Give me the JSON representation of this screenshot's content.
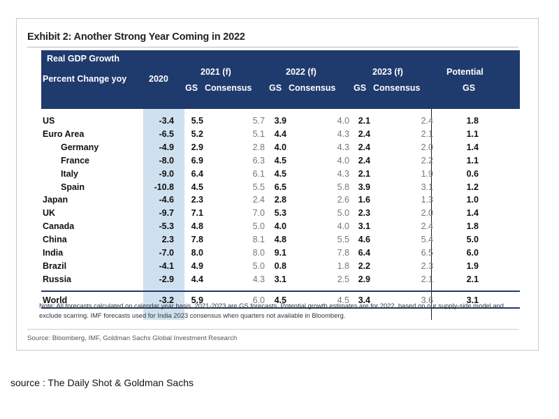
{
  "exhibit": {
    "title": "Exhibit 2: Another Strong Year Coming in 2022",
    "header": {
      "line1": "Real GDP Growth",
      "line2": "Percent Change yoy",
      "col_2020": "2020",
      "group_2021": "2021 (f)",
      "group_2022": "2022 (f)",
      "group_2023": "2023 (f)",
      "potential_line1": "Potential",
      "potential_line2": "GS",
      "gs": "GS",
      "consensus": "Consensus"
    },
    "rows": [
      {
        "name": "US",
        "indent": false,
        "y2020": "-3.4",
        "gs2021": "5.5",
        "cons2021": "5.7",
        "gs2022": "3.9",
        "cons2022": "4.0",
        "gs2023": "2.1",
        "cons2023": "2.4",
        "potential": "1.8"
      },
      {
        "name": "Euro Area",
        "indent": false,
        "y2020": "-6.5",
        "gs2021": "5.2",
        "cons2021": "5.1",
        "gs2022": "4.4",
        "cons2022": "4.3",
        "gs2023": "2.4",
        "cons2023": "2.1",
        "potential": "1.1"
      },
      {
        "name": "Germany",
        "indent": true,
        "y2020": "-4.9",
        "gs2021": "2.9",
        "cons2021": "2.8",
        "gs2022": "4.0",
        "cons2022": "4.3",
        "gs2023": "2.4",
        "cons2023": "2.0",
        "potential": "1.4"
      },
      {
        "name": "France",
        "indent": true,
        "y2020": "-8.0",
        "gs2021": "6.9",
        "cons2021": "6.3",
        "gs2022": "4.5",
        "cons2022": "4.0",
        "gs2023": "2.4",
        "cons2023": "2.2",
        "potential": "1.1"
      },
      {
        "name": "Italy",
        "indent": true,
        "y2020": "-9.0",
        "gs2021": "6.4",
        "cons2021": "6.1",
        "gs2022": "4.5",
        "cons2022": "4.3",
        "gs2023": "2.1",
        "cons2023": "1.9",
        "potential": "0.6"
      },
      {
        "name": "Spain",
        "indent": true,
        "y2020": "-10.8",
        "gs2021": "4.5",
        "cons2021": "5.5",
        "gs2022": "6.5",
        "cons2022": "5.8",
        "gs2023": "3.9",
        "cons2023": "3.1",
        "potential": "1.2"
      },
      {
        "name": "Japan",
        "indent": false,
        "y2020": "-4.6",
        "gs2021": "2.3",
        "cons2021": "2.4",
        "gs2022": "2.8",
        "cons2022": "2.6",
        "gs2023": "1.6",
        "cons2023": "1.3",
        "potential": "1.0"
      },
      {
        "name": "UK",
        "indent": false,
        "y2020": "-9.7",
        "gs2021": "7.1",
        "cons2021": "7.0",
        "gs2022": "5.3",
        "cons2022": "5.0",
        "gs2023": "2.3",
        "cons2023": "2.0",
        "potential": "1.4"
      },
      {
        "name": "Canada",
        "indent": false,
        "y2020": "-5.3",
        "gs2021": "4.8",
        "cons2021": "5.0",
        "gs2022": "4.0",
        "cons2022": "4.0",
        "gs2023": "3.1",
        "cons2023": "2.4",
        "potential": "1.8"
      },
      {
        "name": "China",
        "indent": false,
        "y2020": "2.3",
        "gs2021": "7.8",
        "cons2021": "8.1",
        "gs2022": "4.8",
        "cons2022": "5.5",
        "gs2023": "4.6",
        "cons2023": "5.4",
        "potential": "5.0"
      },
      {
        "name": "India",
        "indent": false,
        "y2020": "-7.0",
        "gs2021": "8.0",
        "cons2021": "8.0",
        "gs2022": "9.1",
        "cons2022": "7.8",
        "gs2023": "6.4",
        "cons2023": "6.5",
        "potential": "6.0"
      },
      {
        "name": "Brazil",
        "indent": false,
        "y2020": "-4.1",
        "gs2021": "4.9",
        "cons2021": "5.0",
        "gs2022": "0.8",
        "cons2022": "1.8",
        "gs2023": "2.2",
        "cons2023": "2.3",
        "potential": "1.9"
      },
      {
        "name": "Russia",
        "indent": false,
        "y2020": "-2.9",
        "gs2021": "4.4",
        "cons2021": "4.3",
        "gs2022": "3.1",
        "cons2022": "2.5",
        "gs2023": "2.9",
        "cons2023": "2.1",
        "potential": "2.1"
      }
    ],
    "world": {
      "name": "World",
      "y2020": "-3.2",
      "gs2021": "5.9",
      "cons2021": "6.0",
      "gs2022": "4.5",
      "cons2022": "4.5",
      "gs2023": "3.4",
      "cons2023": "3.6",
      "potential": "3.1"
    },
    "note": "Note: All forecasts calculated on calendar year basis. 2021-2023 are GS forecasts. Potential growth estimates are for 2022, based on our supply-side model and exclude scarring. IMF forecasts used for India 2023 consensus when quarters not available in Bloomberg.",
    "source": "Source: Bloomberg, IMF, Goldman Sachs Global Investment Research"
  },
  "caption": "source : The Daily Shot & Goldman Sachs",
  "colors": {
    "header_bg": "#1f3a6d",
    "col_2020_bg": "#cfe0ee",
    "consensus_text": "#777777"
  }
}
